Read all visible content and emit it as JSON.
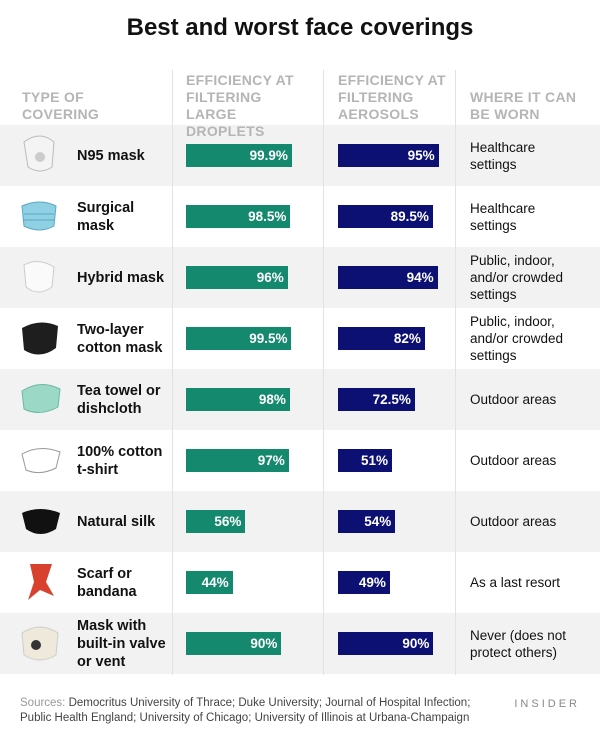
{
  "title": "Best and worst face coverings",
  "table": {
    "columns": [
      "TYPE OF COVERING",
      "EFFICIENCY AT FILTERING LARGE DROPLETS",
      "EFFICIENCY AT FILTERING AEROSOLS",
      "WHERE IT CAN BE WORN"
    ],
    "rows": [
      {
        "covering": "N95 mask",
        "where": "Healthcare settings"
      },
      {
        "covering": "Surgical mask",
        "where": "Healthcare settings"
      },
      {
        "covering": "Hybrid mask",
        "where": "Public, indoor, and/or crowded settings"
      },
      {
        "covering": "Two-layer cotton mask",
        "where": "Public, indoor, and/or crowded settings"
      },
      {
        "covering": "Tea towel or dishcloth",
        "where": "Outdoor areas"
      },
      {
        "covering": "100% cotton t-shirt",
        "where": "Outdoor areas"
      },
      {
        "covering": "Natural silk",
        "where": "Outdoor areas"
      },
      {
        "covering": "Scarf or bandana",
        "where": "As a last resort"
      },
      {
        "covering": "Mask with built-in valve or vent",
        "where": "Never (does not protect others)"
      }
    ],
    "xlim": [
      0,
      100
    ],
    "large_droplets": {
      "color": "#15896e",
      "values": [
        99.9,
        98.5,
        96,
        99.5,
        98,
        97,
        56,
        44,
        90
      ],
      "value_labels": [
        "99.9%",
        "98.5%",
        "96%",
        "99.5%",
        "98%",
        "97%",
        "56%",
        "44%",
        "90%"
      ]
    },
    "aerosols": {
      "color": "#0c1072",
      "values": [
        95,
        89.5,
        94,
        82,
        72.5,
        51,
        54,
        49,
        90
      ],
      "value_labels": [
        "95%",
        "89.5%",
        "94%",
        "82%",
        "72.5%",
        "51%",
        "54%",
        "49%",
        "90%"
      ]
    }
  },
  "footer": {
    "sources_label": "Sources:",
    "sources": "Democritus University of Thrace; Duke University; Journal of Hospital Infection; Public Health England; University of Chicago; University of Illinois at Urbana-Champaign",
    "brand": "INSIDER"
  }
}
